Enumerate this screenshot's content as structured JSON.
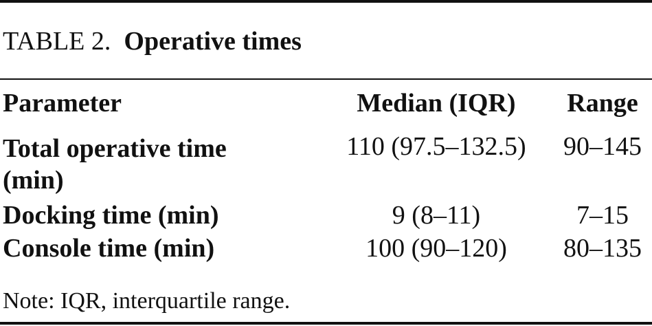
{
  "caption": {
    "label": "TABLE 2.",
    "title": "Operative times"
  },
  "table": {
    "header": [
      "Parameter",
      "Median (IQR)",
      "Range"
    ],
    "rows": [
      [
        "Total operative time (min)",
        "110 (97.5–132.5)",
        "90–145"
      ],
      [
        "Docking time (min)",
        "9 (8–11)",
        "7–15"
      ],
      [
        "Console time (min)",
        "100 (90–120)",
        "80–135"
      ]
    ]
  },
  "note": "Note: IQR, interquartile range."
}
